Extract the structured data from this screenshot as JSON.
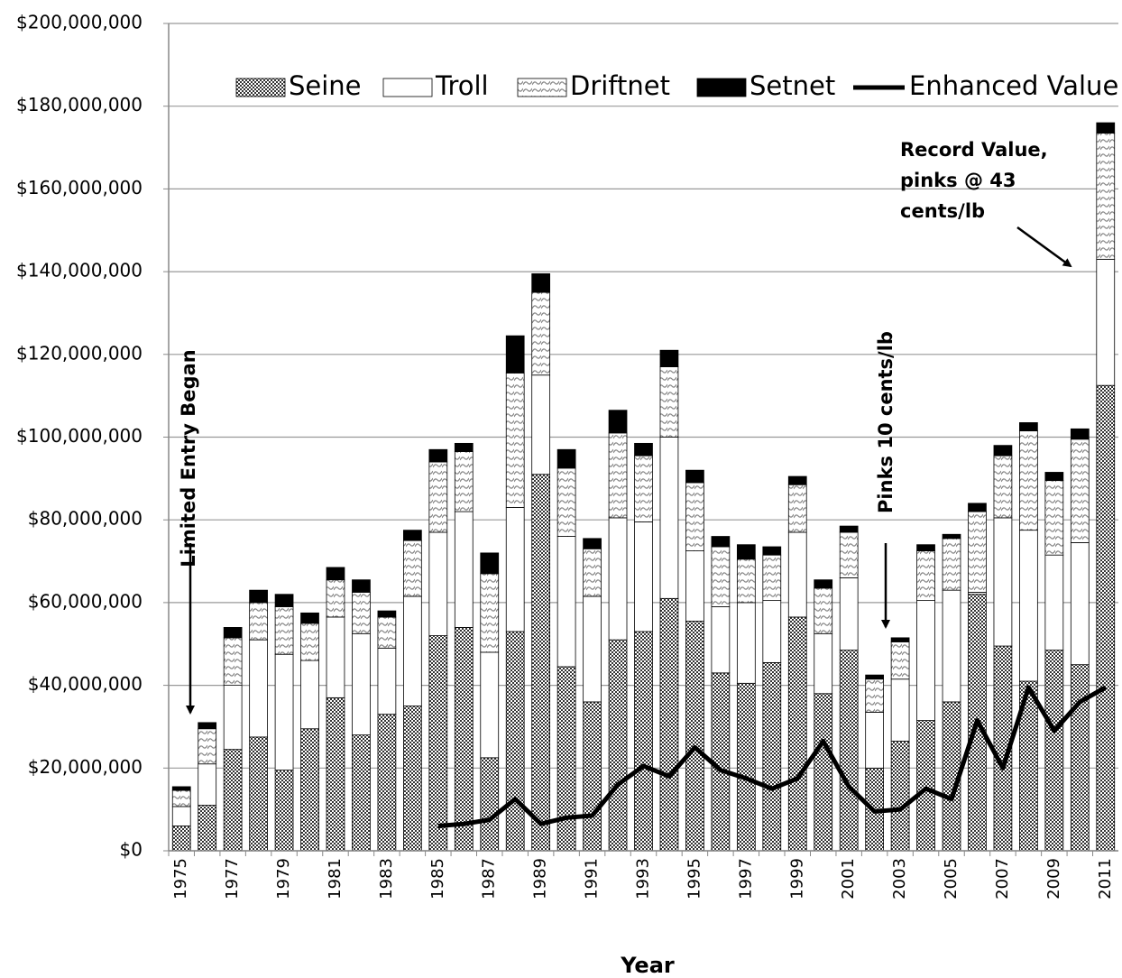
{
  "chart_data": {
    "type": "stacked-bar",
    "x_label": "Year",
    "categories": [
      "1975",
      null,
      "1977",
      null,
      "1979",
      null,
      "1981",
      null,
      "1983",
      null,
      "1985",
      null,
      "1987",
      null,
      "1989",
      null,
      "1991",
      null,
      "1993",
      null,
      "1995",
      null,
      "1997",
      null,
      "1999",
      null,
      "2001",
      null,
      "2003",
      null,
      "2005",
      null,
      "2007",
      null,
      "2009",
      null,
      "2011"
    ],
    "series": [
      {
        "name": "Seine",
        "color": "#333333",
        "pattern": "checker",
        "values": [
          6000000,
          11000000,
          24500000,
          27500000,
          19500000,
          29500000,
          37000000,
          28000000,
          33000000,
          35000000,
          52000000,
          54000000,
          22500000,
          53000000,
          91000000,
          44500000,
          36000000,
          51000000,
          53000000,
          61000000,
          55500000,
          43000000,
          40500000,
          45500000,
          56500000,
          38000000,
          48500000,
          20000000,
          26500000,
          31500000,
          36000000,
          62000000,
          49500000,
          41000000,
          48500000,
          45000000,
          112500000
        ]
      },
      {
        "name": "Troll",
        "color": "#ffffff",
        "pattern": "solid",
        "values": [
          4700000,
          10000000,
          15500000,
          23500000,
          28000000,
          16500000,
          19500000,
          24500000,
          16000000,
          26500000,
          25000000,
          28000000,
          25500000,
          30000000,
          24000000,
          31500000,
          25500000,
          29500000,
          26500000,
          39000000,
          17000000,
          16000000,
          19500000,
          15000000,
          20500000,
          14500000,
          17500000,
          13500000,
          15000000,
          29000000,
          27000000,
          500000,
          31000000,
          36500000,
          23000000,
          29500000,
          30500000
        ]
      },
      {
        "name": "Driftnet",
        "color": "#8a8a8a",
        "pattern": "wave",
        "values": [
          3900000,
          8500000,
          11500000,
          9000000,
          11500000,
          9000000,
          9000000,
          10000000,
          7500000,
          13500000,
          17000000,
          14500000,
          19000000,
          32500000,
          20000000,
          16500000,
          11500000,
          20500000,
          16000000,
          17000000,
          16500000,
          14500000,
          10500000,
          11000000,
          11500000,
          11000000,
          11000000,
          8000000,
          9000000,
          12000000,
          12500000,
          19500000,
          15000000,
          24000000,
          18000000,
          25000000,
          30500000
        ]
      },
      {
        "name": "Setnet",
        "color": "#000000",
        "pattern": "solid",
        "values": [
          900000,
          1500000,
          2500000,
          3000000,
          3000000,
          2500000,
          3000000,
          3000000,
          1500000,
          2500000,
          3000000,
          2000000,
          5000000,
          9000000,
          4500000,
          4500000,
          2500000,
          5500000,
          3000000,
          4000000,
          3000000,
          2500000,
          3500000,
          2000000,
          2000000,
          2000000,
          1500000,
          1000000,
          1000000,
          1500000,
          1000000,
          2000000,
          2500000,
          2000000,
          2000000,
          2500000,
          2500000
        ]
      },
      {
        "name": "Enhanced Value",
        "color": "#000000",
        "kind": "line",
        "values": [
          null,
          null,
          null,
          null,
          null,
          null,
          null,
          null,
          null,
          null,
          6000000,
          6500000,
          7500000,
          12500000,
          6500000,
          8000000,
          8500000,
          16000000,
          20500000,
          18000000,
          25000000,
          19500000,
          17500000,
          15000000,
          17500000,
          26500000,
          15500000,
          9500000,
          10000000,
          15000000,
          12500000,
          31500000,
          20000000,
          39500000,
          29000000,
          36000000,
          39500000
        ]
      }
    ],
    "ylim": [
      0,
      200000000
    ],
    "yticks": [
      {
        "value": 0,
        "label": "$0"
      },
      {
        "value": 20000000,
        "label": "$20,000,000"
      },
      {
        "value": 40000000,
        "label": "$40,000,000"
      },
      {
        "value": 60000000,
        "label": "$60,000,000"
      },
      {
        "value": 80000000,
        "label": "$80,000,000"
      },
      {
        "value": 100000000,
        "label": "$100,000,000"
      },
      {
        "value": 120000000,
        "label": "$120,000,000"
      },
      {
        "value": 140000000,
        "label": "$140,000,000"
      },
      {
        "value": 160000000,
        "label": "$160,000,000"
      },
      {
        "value": 180000000,
        "label": "$180,000,000"
      },
      {
        "value": 200000000,
        "label": "$200,000,000"
      }
    ],
    "grid": true,
    "legend": "top",
    "annotations": [
      {
        "text": "Limited Entry Began"
      },
      {
        "text": "Pinks  10 cents/lb"
      },
      {
        "lines": [
          "Record Value,",
          "pinks @ 43",
          "cents/lb"
        ]
      }
    ]
  }
}
